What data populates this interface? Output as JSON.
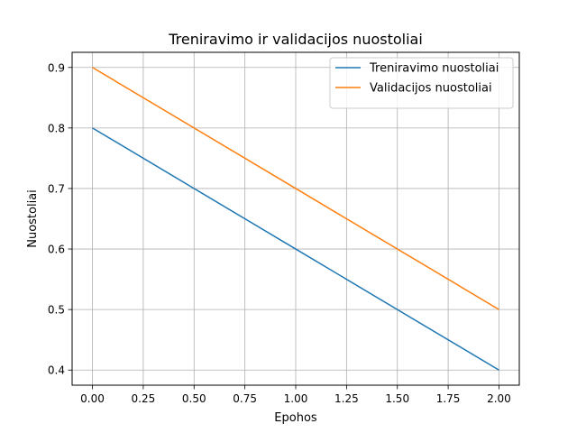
{
  "chart_data": {
    "type": "line",
    "title": "Treniravimo ir validacijos nuostoliai",
    "xlabel": "Epohos",
    "ylabel": "Nuostoliai",
    "x": [
      0,
      1,
      2
    ],
    "series": [
      {
        "name": "Treniravimo nuostoliai",
        "values": [
          0.8,
          0.6,
          0.4
        ],
        "color": "#1f77b4"
      },
      {
        "name": "Validacijos nuostoliai",
        "values": [
          0.9,
          0.7,
          0.5
        ],
        "color": "#ff7f0e"
      }
    ],
    "xlim": [
      -0.1,
      2.1
    ],
    "ylim": [
      0.375,
      0.925
    ],
    "xticks": [
      0,
      0.25,
      0.5,
      0.75,
      1,
      1.25,
      1.5,
      1.75,
      2
    ],
    "xtick_labels": [
      "0.00",
      "0.25",
      "0.50",
      "0.75",
      "1.00",
      "1.25",
      "1.50",
      "1.75",
      "2.00"
    ],
    "yticks": [
      0.4,
      0.5,
      0.6,
      0.7,
      0.8,
      0.9
    ],
    "ytick_labels": [
      "0.4",
      "0.5",
      "0.6",
      "0.7",
      "0.8",
      "0.9"
    ],
    "grid": true,
    "legend_position": "top-right"
  }
}
